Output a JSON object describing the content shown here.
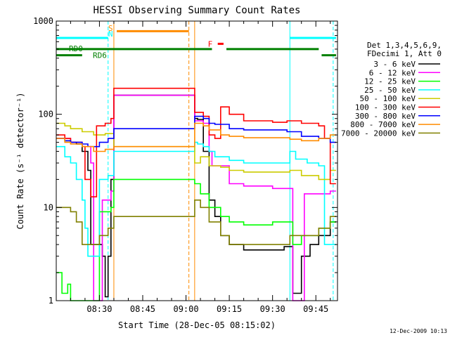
{
  "chart_data": {
    "type": "line",
    "title": "HESSI Observing Summary Count Rates",
    "xlabel": "Start Time (28-Dec-05 08:15:02)",
    "ylabel": "Count Rate (s⁻¹ detector⁻¹)",
    "yscale": "log",
    "ylim": [
      1,
      1000
    ],
    "xlim": [
      "08:15:02",
      "09:52:30"
    ],
    "x_ticks": [
      "08:30",
      "08:45",
      "09:00",
      "09:15",
      "09:30",
      "09:45"
    ],
    "y_ticks": [
      "1",
      "10",
      "100",
      "1000"
    ],
    "legend_header": [
      "Det 1,3,4,5,6,9,",
      "FDecimi 1, Att 0"
    ],
    "legend_position": "right",
    "footer": "12-Dec-2009 10:13",
    "annotations": {
      "S": {
        "label": "S",
        "color": "#ff8c00",
        "x": "08:34"
      },
      "N": {
        "label": "N",
        "color": "#00ffff",
        "x": "08:34"
      },
      "F": {
        "label": "F",
        "color": "#ff0000",
        "x_start": "09:11",
        "x_end": "09:13"
      },
      "RD0": {
        "label": "RD0"
      },
      "RD6": {
        "label": "RD6"
      }
    },
    "flag_bars": [
      {
        "name": "saa",
        "color": "#00ffff",
        "level": 660,
        "segments": [
          [
            "08:15",
            "08:33"
          ],
          [
            "09:36",
            "09:52"
          ]
        ]
      },
      {
        "name": "night",
        "color": "#ff8c00",
        "level": 780,
        "segments": [
          [
            "08:36",
            "09:01"
          ]
        ]
      },
      {
        "name": "flare",
        "color": "#ff0000",
        "level": 570,
        "segments": [
          [
            "09:11",
            "09:13"
          ]
        ]
      },
      {
        "name": "rd0",
        "color": "#008000",
        "level": 500,
        "segments": [
          [
            "08:15",
            "09:01"
          ],
          [
            "09:01",
            "09:09"
          ],
          [
            "09:14",
            "09:46"
          ]
        ]
      },
      {
        "name": "rd6",
        "color": "#008000",
        "level": 430,
        "segments": [
          [
            "08:15",
            "08:24"
          ],
          [
            "09:47",
            "09:52"
          ]
        ]
      }
    ],
    "vertical_lines": [
      {
        "x": "08:33",
        "color": "#00ffff",
        "style": "dashed"
      },
      {
        "x": "08:35",
        "color": "#ff8c00",
        "style": "solid"
      },
      {
        "x": "09:01",
        "color": "#ff8c00",
        "style": "dashed"
      },
      {
        "x": "09:03",
        "color": "#ff8c00",
        "style": "solid"
      },
      {
        "x": "09:36",
        "color": "#00ffff",
        "style": "solid"
      },
      {
        "x": "09:51",
        "color": "#00ffff",
        "style": "dashed"
      }
    ],
    "series": [
      {
        "name": "3 - 6 keV",
        "color": "#000000",
        "points": [
          [
            "08:15",
            55
          ],
          [
            "08:18",
            52
          ],
          [
            "08:20",
            50
          ],
          [
            "08:22",
            48
          ],
          [
            "08:24",
            40
          ],
          [
            "08:26",
            25
          ],
          [
            "08:27",
            4
          ],
          [
            "08:31",
            3
          ],
          [
            "08:32",
            1.1
          ],
          [
            "08:33",
            3
          ],
          [
            "08:34",
            20
          ],
          [
            "08:35",
            160
          ],
          [
            "09:03",
            90
          ],
          [
            "09:04",
            88
          ],
          [
            "09:06",
            40
          ],
          [
            "09:08",
            12
          ],
          [
            "09:10",
            8
          ],
          [
            "09:12",
            5
          ],
          [
            "09:15",
            4
          ],
          [
            "09:20",
            3.5
          ],
          [
            "09:30",
            3.5
          ],
          [
            "09:34",
            3.8
          ],
          [
            "09:37",
            1.2
          ],
          [
            "09:40",
            3
          ],
          [
            "09:43",
            4
          ],
          [
            "09:46",
            5
          ],
          [
            "09:50",
            7
          ],
          [
            "09:52",
            7
          ]
        ]
      },
      {
        "name": "6 - 12 keV",
        "color": "#ff00ff",
        "points": [
          [
            "08:15",
            55
          ],
          [
            "08:20",
            50
          ],
          [
            "08:24",
            45
          ],
          [
            "08:27",
            30
          ],
          [
            "08:28",
            1
          ],
          [
            "08:30",
            1
          ],
          [
            "08:31",
            12
          ],
          [
            "08:34",
            15
          ],
          [
            "08:35",
            160
          ],
          [
            "09:03",
            85
          ],
          [
            "09:06",
            80
          ],
          [
            "09:08",
            40
          ],
          [
            "09:09",
            28
          ],
          [
            "09:15",
            18
          ],
          [
            "09:20",
            17
          ],
          [
            "09:30",
            16
          ],
          [
            "09:34",
            16
          ],
          [
            "09:36",
            16
          ],
          [
            "09:37",
            1
          ],
          [
            "09:40",
            1
          ],
          [
            "09:41",
            14
          ],
          [
            "09:46",
            14
          ],
          [
            "09:50",
            15
          ],
          [
            "09:52",
            15
          ]
        ]
      },
      {
        "name": "12 - 25 keV",
        "color": "#00ff00",
        "points": [
          [
            "08:15",
            2
          ],
          [
            "08:17",
            1.2
          ],
          [
            "08:19",
            1.5
          ],
          [
            "08:20",
            1
          ],
          [
            "08:24",
            1
          ],
          [
            "08:28",
            1
          ],
          [
            "08:30",
            9
          ],
          [
            "08:34",
            10
          ],
          [
            "08:35",
            20
          ],
          [
            "09:03",
            18
          ],
          [
            "09:05",
            14
          ],
          [
            "09:08",
            10
          ],
          [
            "09:12",
            8
          ],
          [
            "09:15",
            7
          ],
          [
            "09:20",
            6.5
          ],
          [
            "09:30",
            7
          ],
          [
            "09:34",
            7
          ],
          [
            "09:37",
            4
          ],
          [
            "09:40",
            5
          ],
          [
            "09:46",
            6
          ],
          [
            "09:50",
            7
          ],
          [
            "09:52",
            7
          ]
        ]
      },
      {
        "name": "25 - 50 keV",
        "color": "#00ffff",
        "points": [
          [
            "08:15",
            45
          ],
          [
            "08:18",
            35
          ],
          [
            "08:20",
            30
          ],
          [
            "08:22",
            20
          ],
          [
            "08:24",
            12
          ],
          [
            "08:25",
            6
          ],
          [
            "08:26",
            3
          ],
          [
            "08:29",
            3
          ],
          [
            "08:30",
            20
          ],
          [
            "08:33",
            22
          ],
          [
            "08:35",
            40
          ],
          [
            "09:03",
            50
          ],
          [
            "09:04",
            48
          ],
          [
            "09:06",
            45
          ],
          [
            "09:08",
            40
          ],
          [
            "09:10",
            35
          ],
          [
            "09:15",
            32
          ],
          [
            "09:20",
            30
          ],
          [
            "09:30",
            30
          ],
          [
            "09:35",
            30
          ],
          [
            "09:36",
            40
          ],
          [
            "09:38",
            33
          ],
          [
            "09:42",
            30
          ],
          [
            "09:46",
            28
          ],
          [
            "09:48",
            4
          ],
          [
            "09:50",
            4
          ],
          [
            "09:52",
            4
          ]
        ]
      },
      {
        "name": "50 - 100 keV",
        "color": "#cccc00",
        "points": [
          [
            "08:15",
            80
          ],
          [
            "08:18",
            75
          ],
          [
            "08:20",
            70
          ],
          [
            "08:24",
            65
          ],
          [
            "08:28",
            60
          ],
          [
            "08:32",
            62
          ],
          [
            "08:35",
            45
          ],
          [
            "09:03",
            30
          ],
          [
            "09:05",
            35
          ],
          [
            "09:08",
            28
          ],
          [
            "09:12",
            27
          ],
          [
            "09:15",
            25
          ],
          [
            "09:20",
            24
          ],
          [
            "09:30",
            24
          ],
          [
            "09:36",
            25
          ],
          [
            "09:40",
            22
          ],
          [
            "09:46",
            20
          ],
          [
            "09:50",
            25
          ],
          [
            "09:52",
            25
          ]
        ]
      },
      {
        "name": "100 - 300 keV",
        "color": "#ff0000",
        "points": [
          [
            "08:15",
            60
          ],
          [
            "08:18",
            55
          ],
          [
            "08:20",
            50
          ],
          [
            "08:24",
            45
          ],
          [
            "08:25",
            20
          ],
          [
            "08:27",
            13
          ],
          [
            "08:28",
            13
          ],
          [
            "08:29",
            75
          ],
          [
            "08:32",
            80
          ],
          [
            "08:34",
            90
          ],
          [
            "08:35",
            190
          ],
          [
            "09:03",
            105
          ],
          [
            "09:06",
            95
          ],
          [
            "09:08",
            60
          ],
          [
            "09:10",
            55
          ],
          [
            "09:12",
            120
          ],
          [
            "09:15",
            100
          ],
          [
            "09:20",
            85
          ],
          [
            "09:30",
            82
          ],
          [
            "09:35",
            85
          ],
          [
            "09:40",
            80
          ],
          [
            "09:46",
            75
          ],
          [
            "09:48",
            55
          ],
          [
            "09:50",
            18
          ],
          [
            "09:52",
            18
          ]
        ]
      },
      {
        "name": "300 - 800 keV",
        "color": "#0000ff",
        "points": [
          [
            "08:15",
            55
          ],
          [
            "08:18",
            52
          ],
          [
            "08:20",
            50
          ],
          [
            "08:24",
            48
          ],
          [
            "08:26",
            45
          ],
          [
            "08:30",
            50
          ],
          [
            "08:33",
            55
          ],
          [
            "08:35",
            70
          ],
          [
            "09:03",
            95
          ],
          [
            "09:06",
            90
          ],
          [
            "09:08",
            80
          ],
          [
            "09:10",
            78
          ],
          [
            "09:15",
            70
          ],
          [
            "09:20",
            68
          ],
          [
            "09:30",
            68
          ],
          [
            "09:35",
            65
          ],
          [
            "09:40",
            58
          ],
          [
            "09:46",
            55
          ],
          [
            "09:50",
            50
          ],
          [
            "09:52",
            50
          ]
        ]
      },
      {
        "name": "800 - 7000 keV",
        "color": "#ff8c00",
        "points": [
          [
            "08:15",
            55
          ],
          [
            "08:18",
            50
          ],
          [
            "08:20",
            48
          ],
          [
            "08:24",
            45
          ],
          [
            "08:28",
            40
          ],
          [
            "08:32",
            42
          ],
          [
            "08:35",
            45
          ],
          [
            "09:03",
            80
          ],
          [
            "09:06",
            75
          ],
          [
            "09:08",
            68
          ],
          [
            "09:12",
            60
          ],
          [
            "09:15",
            58
          ],
          [
            "09:20",
            56
          ],
          [
            "09:30",
            56
          ],
          [
            "09:36",
            54
          ],
          [
            "09:40",
            52
          ],
          [
            "09:46",
            55
          ],
          [
            "09:50",
            60
          ],
          [
            "09:52",
            60
          ]
        ]
      },
      {
        "name": "7000 - 20000 keV",
        "color": "#808000",
        "points": [
          [
            "08:15",
            10
          ],
          [
            "08:18",
            10
          ],
          [
            "08:20",
            9
          ],
          [
            "08:22",
            7
          ],
          [
            "08:24",
            4
          ],
          [
            "08:26",
            4
          ],
          [
            "08:28",
            4
          ],
          [
            "08:30",
            5
          ],
          [
            "08:33",
            6
          ],
          [
            "08:35",
            8
          ],
          [
            "09:03",
            12
          ],
          [
            "09:05",
            10
          ],
          [
            "09:08",
            7
          ],
          [
            "09:12",
            5
          ],
          [
            "09:15",
            4
          ],
          [
            "09:20",
            4
          ],
          [
            "09:30",
            4
          ],
          [
            "09:36",
            5
          ],
          [
            "09:40",
            5
          ],
          [
            "09:46",
            6
          ],
          [
            "09:50",
            8
          ],
          [
            "09:52",
            8
          ]
        ]
      }
    ]
  }
}
